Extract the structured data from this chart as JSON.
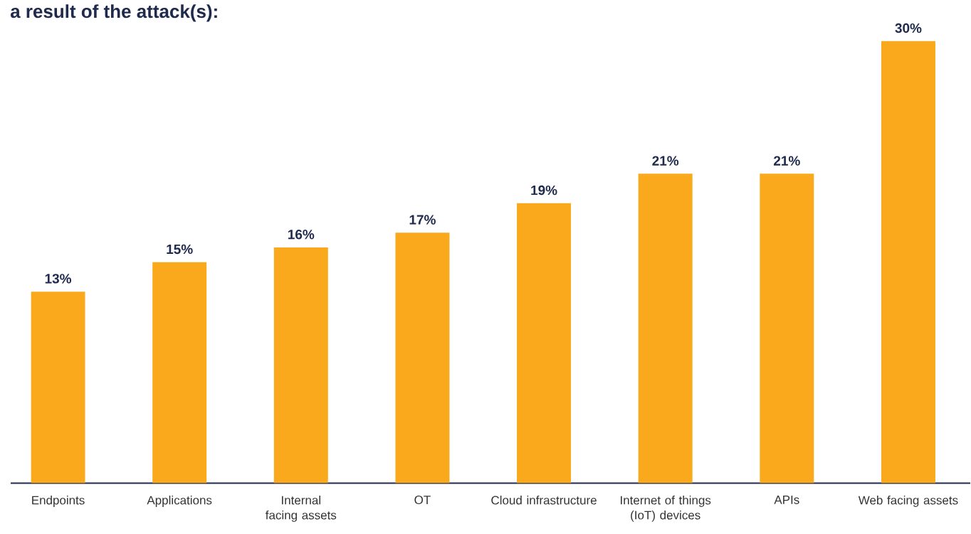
{
  "chart_data": {
    "type": "bar",
    "title": "a result of the attack(s):",
    "categories": [
      "Endpoints",
      "Applications",
      "Internal facing assets",
      "OT",
      "Cloud infrastructure",
      "Internet of things (IoT) devices",
      "APIs",
      "Web facing assets"
    ],
    "values": [
      13,
      15,
      16,
      17,
      19,
      21,
      21,
      30
    ],
    "value_labels": [
      "13%",
      "15%",
      "16%",
      "17%",
      "19%",
      "21%",
      "21%",
      "30%"
    ],
    "color": "#f9a91b"
  }
}
